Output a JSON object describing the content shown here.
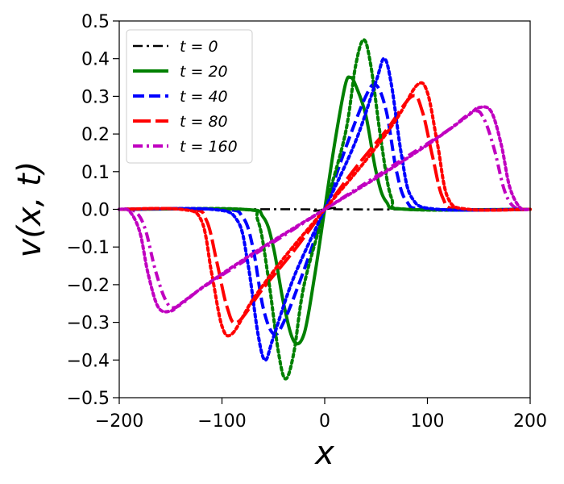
{
  "chart_data": {
    "type": "line",
    "xlabel": "x",
    "ylabel": "v(x, t)",
    "xlim": [
      -200,
      200
    ],
    "ylim": [
      -0.5,
      0.5
    ],
    "xticks": [
      -200,
      -100,
      0,
      100,
      200
    ],
    "yticks": [
      -0.5,
      -0.4,
      -0.3,
      -0.2,
      -0.1,
      0.0,
      0.1,
      0.2,
      0.3,
      0.4,
      0.5
    ],
    "xtick_labels": [
      "−200",
      "−100",
      "0",
      "100",
      "200"
    ],
    "ytick_labels": [
      "−0.5",
      "−0.4",
      "−0.3",
      "−0.2",
      "−0.1",
      "0.0",
      "0.1",
      "0.2",
      "0.3",
      "0.4",
      "0.5"
    ],
    "grid": false,
    "legend_position": "top-left",
    "series": [
      {
        "name": "t = 0",
        "color": "#000000",
        "style": "dash-dot",
        "x": [
          -200,
          -20,
          -10,
          -5,
          0,
          5,
          10,
          20,
          200
        ],
        "y": [
          0,
          0,
          -0.004,
          -0.002,
          0,
          0.002,
          0.004,
          0,
          0
        ]
      },
      {
        "name": "t = 20",
        "color": "#008000",
        "style": "solid",
        "x": [
          -200,
          -80,
          -60,
          -50,
          -40,
          -30,
          -20,
          -10,
          0,
          10,
          20,
          25,
          30,
          40,
          50,
          60,
          80,
          200
        ],
        "y": [
          0,
          0,
          -0.02,
          -0.1,
          -0.25,
          -0.35,
          -0.33,
          -0.18,
          0,
          0.18,
          0.33,
          0.35,
          0.33,
          0.25,
          0.1,
          0.02,
          0,
          0
        ]
      },
      {
        "name": "t = 40",
        "color": "#0000ff",
        "style": "dashed",
        "x": [
          -200,
          -100,
          -80,
          -70,
          -60,
          -50,
          -40,
          -20,
          0,
          20,
          40,
          50,
          60,
          70,
          80,
          100,
          200
        ],
        "y": [
          0,
          0,
          -0.02,
          -0.1,
          -0.26,
          -0.33,
          -0.3,
          -0.16,
          0,
          0.16,
          0.3,
          0.33,
          0.26,
          0.1,
          0.02,
          0,
          0
        ]
      },
      {
        "name": "t = 80",
        "color": "#ff0000",
        "style": "long-dash",
        "x": [
          -200,
          -130,
          -115,
          -105,
          -95,
          -85,
          -60,
          -30,
          0,
          30,
          60,
          85,
          95,
          105,
          115,
          130,
          200
        ],
        "y": [
          0,
          0,
          -0.03,
          -0.14,
          -0.26,
          -0.3,
          -0.21,
          -0.11,
          0,
          0.11,
          0.21,
          0.3,
          0.26,
          0.14,
          0.03,
          0,
          0
        ]
      },
      {
        "name": "t = 160",
        "color": "#c000c0",
        "style": "dash-dot",
        "x": [
          -200,
          -185,
          -175,
          -165,
          -155,
          -145,
          -120,
          -80,
          -40,
          0,
          40,
          80,
          120,
          145,
          155,
          165,
          175,
          185,
          200
        ],
        "y": [
          0,
          -0.005,
          -0.05,
          -0.16,
          -0.24,
          -0.26,
          -0.21,
          -0.14,
          -0.07,
          0,
          0.07,
          0.14,
          0.21,
          0.26,
          0.24,
          0.16,
          0.05,
          0.005,
          0
        ]
      },
      {
        "name": "",
        "color": "#008000",
        "style": "dotted",
        "x": [
          -200,
          -80,
          -65,
          -55,
          -45,
          -38,
          -30,
          -20,
          0,
          20,
          30,
          38,
          45,
          55,
          65,
          80,
          200
        ],
        "y": [
          0,
          0,
          -0.03,
          -0.18,
          -0.38,
          -0.45,
          -0.38,
          -0.2,
          0,
          0.2,
          0.38,
          0.45,
          0.38,
          0.18,
          0.03,
          0,
          0
        ]
      },
      {
        "name": "",
        "color": "#0000ff",
        "style": "dotted",
        "x": [
          -200,
          -110,
          -85,
          -75,
          -65,
          -58,
          -50,
          -30,
          0,
          30,
          50,
          58,
          65,
          75,
          85,
          110,
          200
        ],
        "y": [
          0,
          0,
          -0.03,
          -0.14,
          -0.33,
          -0.4,
          -0.34,
          -0.18,
          0,
          0.18,
          0.34,
          0.4,
          0.33,
          0.14,
          0.03,
          0,
          0
        ]
      },
      {
        "name": "",
        "color": "#ff0000",
        "style": "dotted",
        "x": [
          -200,
          -140,
          -120,
          -110,
          -100,
          -90,
          -70,
          -40,
          0,
          40,
          70,
          90,
          100,
          110,
          120,
          140,
          200
        ],
        "y": [
          0,
          0,
          -0.03,
          -0.17,
          -0.31,
          -0.33,
          -0.24,
          -0.13,
          0,
          0.13,
          0.24,
          0.33,
          0.31,
          0.17,
          0.03,
          0,
          0
        ]
      },
      {
        "name": "",
        "color": "#c000c0",
        "style": "dotted",
        "x": [
          -200,
          -190,
          -180,
          -172,
          -162,
          -150,
          -140,
          -110,
          -60,
          0,
          60,
          110,
          140,
          150,
          162,
          172,
          180,
          190,
          200
        ],
        "y": [
          0,
          -0.005,
          -0.06,
          -0.17,
          -0.26,
          -0.27,
          -0.25,
          -0.19,
          -0.1,
          0,
          0.1,
          0.19,
          0.25,
          0.27,
          0.26,
          0.17,
          0.06,
          0.005,
          0
        ]
      }
    ]
  }
}
